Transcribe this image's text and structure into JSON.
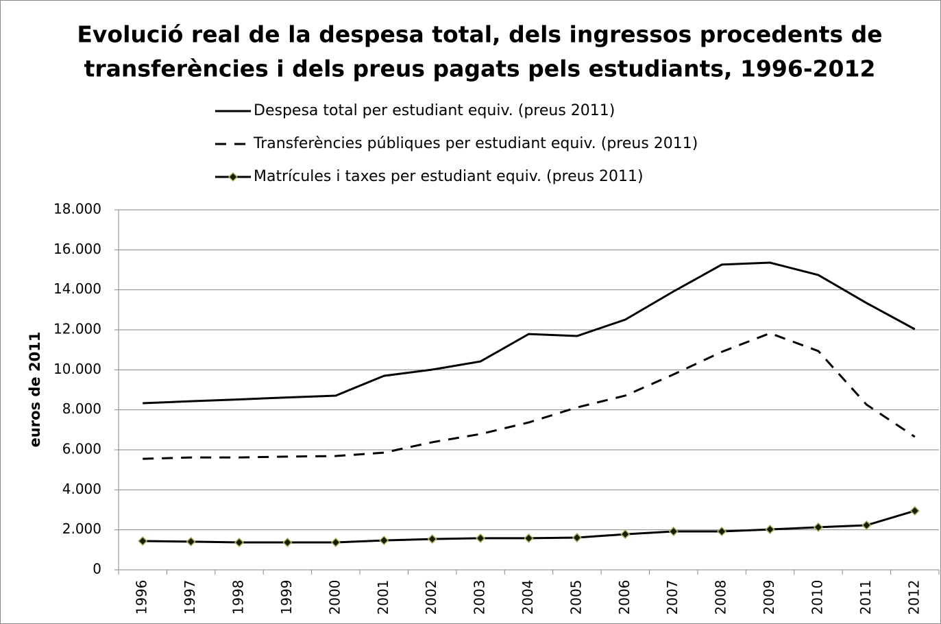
{
  "chart_data": {
    "type": "line",
    "title": [
      "Evolució real de la despesa total, dels ingressos procedents de",
      "transferències i dels preus pagats pels estudiants, 1996-2012"
    ],
    "y_label": "euros de 2011",
    "categories": [
      "1996",
      "1997",
      "1998",
      "1999",
      "2000",
      "2001",
      "2002",
      "2003",
      "2004",
      "2005",
      "2006",
      "2007",
      "2008",
      "2009",
      "2010",
      "2011",
      "2012"
    ],
    "series": [
      {
        "name": "Despesa total per estudiant equiv. (preus 2011)",
        "color": "#000000",
        "line_style": "solid",
        "values": [
          8330,
          8430,
          8520,
          8620,
          8710,
          9700,
          10010,
          10420,
          11790,
          11690,
          12510,
          13920,
          15260,
          15360,
          14740,
          13340,
          12030
        ]
      },
      {
        "name": "Transferències públiques per estudiant equiv. (preus 2011)",
        "color": "#000000",
        "line_style": "dashed",
        "values": [
          5550,
          5620,
          5620,
          5660,
          5690,
          5860,
          6380,
          6790,
          7370,
          8120,
          8710,
          9770,
          10900,
          11830,
          10940,
          8260,
          6650
        ]
      },
      {
        "name": "Matrícules i taxes per estudiant equiv. (preus 2011)",
        "color": "#000000",
        "line_style": "solid",
        "marker": "diamond",
        "values": [
          1440,
          1410,
          1370,
          1370,
          1370,
          1470,
          1540,
          1580,
          1580,
          1610,
          1780,
          1920,
          1920,
          2020,
          2130,
          2230,
          2950
        ]
      }
    ],
    "ylim": [
      0,
      18000
    ],
    "yticks": [
      0,
      {
        "value": 2000,
        "label": "2.000"
      },
      {
        "value": 4000,
        "label": "4.000"
      },
      {
        "value": 6000,
        "label": "6.000"
      },
      {
        "value": 8000,
        "label": "8.000"
      },
      {
        "value": 10000,
        "label": "10.000"
      },
      {
        "value": 12000,
        "label": "12.000"
      },
      {
        "value": 14000,
        "label": "14.000"
      },
      {
        "value": 16000,
        "label": "16.000"
      },
      {
        "value": 18000,
        "label": "18.000"
      }
    ],
    "grid": true,
    "legend": "top"
  }
}
